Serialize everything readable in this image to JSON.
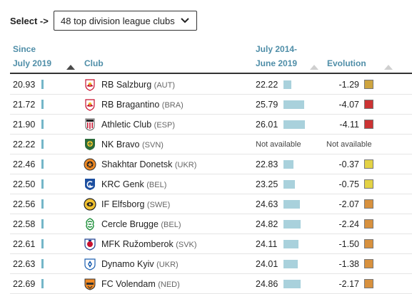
{
  "controls": {
    "select_label": "Select ->",
    "dropdown_value": "48 top division league clubs"
  },
  "headers": {
    "since_line1": "Since",
    "since_line2": "July 2019",
    "club": "Club",
    "period_line1": "July 2014-",
    "period_line2": "June 2019",
    "evolution": "Evolution"
  },
  "colors": {
    "header_text": "#4f8ea8",
    "bar_dark": "#74b6c8",
    "bar_light": "#a9d1dc",
    "evo_red": "#cc3333",
    "evo_orange": "#d8913e",
    "evo_gold": "#cea43f",
    "evo_yellow": "#e3d245"
  },
  "rows": [
    {
      "since": "20.93",
      "club": "RB Salzburg",
      "country": "(AUT)",
      "logo": "red-bull-crest-icon",
      "prev": "22.22",
      "evolution": "-1.29",
      "evo_color": "#cea43f"
    },
    {
      "since": "21.72",
      "club": "RB Bragantino",
      "country": "(BRA)",
      "logo": "red-bull-crest-icon",
      "prev": "25.79",
      "evolution": "-4.07",
      "evo_color": "#cc3333"
    },
    {
      "since": "21.90",
      "club": "Athletic Club",
      "country": "(ESP)",
      "logo": "athletic-club-crest-icon",
      "prev": "26.01",
      "evolution": "-4.11",
      "evo_color": "#cc3333"
    },
    {
      "since": "22.22",
      "club": "NK Bravo",
      "country": "(SVN)",
      "logo": "nk-bravo-crest-icon",
      "prev": "Not available",
      "evolution": "Not available",
      "evo_color": ""
    },
    {
      "since": "22.46",
      "club": "Shakhtar Donetsk",
      "country": "(UKR)",
      "logo": "shakhtar-crest-icon",
      "prev": "22.83",
      "evolution": "-0.37",
      "evo_color": "#e3d245"
    },
    {
      "since": "22.50",
      "club": "KRC Genk",
      "country": "(BEL)",
      "logo": "genk-crest-icon",
      "prev": "23.25",
      "evolution": "-0.75",
      "evo_color": "#e3d245"
    },
    {
      "since": "22.56",
      "club": "IF Elfsborg",
      "country": "(SWE)",
      "logo": "elfsborg-crest-icon",
      "prev": "24.63",
      "evolution": "-2.07",
      "evo_color": "#d8913e"
    },
    {
      "since": "22.58",
      "club": "Cercle Brugge",
      "country": "(BEL)",
      "logo": "cercle-brugge-crest-icon",
      "prev": "24.82",
      "evolution": "-2.24",
      "evo_color": "#d8913e"
    },
    {
      "since": "22.61",
      "club": "MFK Ružomberok",
      "country": "(SVK)",
      "logo": "ruzomberok-crest-icon",
      "prev": "24.11",
      "evolution": "-1.50",
      "evo_color": "#d8913e"
    },
    {
      "since": "22.63",
      "club": "Dynamo Kyiv",
      "country": "(UKR)",
      "logo": "dynamo-kyiv-crest-icon",
      "prev": "24.01",
      "evolution": "-1.38",
      "evo_color": "#d8913e"
    },
    {
      "since": "22.69",
      "club": "FC Volendam",
      "country": "(NED)",
      "logo": "volendam-crest-icon",
      "prev": "24.86",
      "evolution": "-2.17",
      "evo_color": "#d8913e"
    }
  ]
}
